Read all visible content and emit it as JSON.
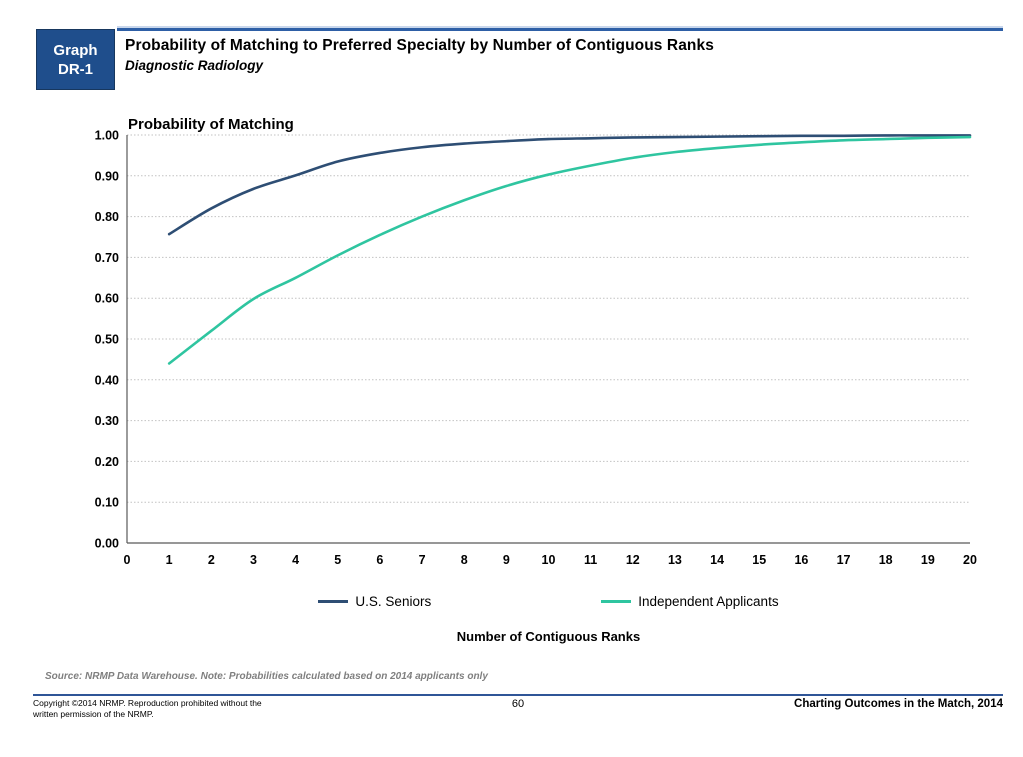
{
  "page": {
    "badge_line1": "Graph",
    "badge_line2": "DR-1",
    "title": "Probability of Matching to Preferred Specialty by Number of Contiguous Ranks",
    "subtitle": "Diagnostic Radiology"
  },
  "colors": {
    "badge_bg": "#1F4E8C",
    "header_rule": "#2E5FA6",
    "footer_rule": "#2F5597",
    "gridline": "#C2C2C2",
    "axis": "#595959",
    "us_seniors_line": "#2E4E74",
    "independent_line": "#2FC5A0",
    "source_note_text": "#7F7F7F"
  },
  "chart_data": {
    "type": "line",
    "title": "Probability of Matching",
    "xlabel": "Number of Contiguous Ranks",
    "ylabel": "",
    "xlim": [
      0,
      20
    ],
    "ylim": [
      0.0,
      1.0
    ],
    "grid": true,
    "legend_position": "bottom",
    "xticks": [
      0,
      1,
      2,
      3,
      4,
      5,
      6,
      7,
      8,
      9,
      10,
      11,
      12,
      13,
      14,
      15,
      16,
      17,
      18,
      19,
      20
    ],
    "yticks": [
      "0.00",
      "0.10",
      "0.20",
      "0.30",
      "0.40",
      "0.50",
      "0.60",
      "0.70",
      "0.80",
      "0.90",
      "1.00"
    ],
    "x": [
      1,
      2,
      3,
      4,
      5,
      6,
      7,
      8,
      9,
      10,
      11,
      12,
      13,
      14,
      15,
      16,
      17,
      18,
      19,
      20
    ],
    "series": [
      {
        "name": "U.S. Seniors",
        "color": "#2E4E74",
        "values": [
          0.757,
          0.82,
          0.868,
          0.901,
          0.935,
          0.956,
          0.97,
          0.979,
          0.985,
          0.99,
          0.992,
          0.994,
          0.995,
          0.996,
          0.997,
          0.998,
          0.998,
          0.999,
          0.999,
          0.999
        ]
      },
      {
        "name": "Independent Applicants",
        "color": "#2FC5A0",
        "values": [
          0.44,
          0.52,
          0.598,
          0.65,
          0.705,
          0.755,
          0.8,
          0.84,
          0.875,
          0.903,
          0.925,
          0.944,
          0.958,
          0.968,
          0.976,
          0.982,
          0.987,
          0.99,
          0.993,
          0.995
        ]
      }
    ]
  },
  "footer": {
    "source_note": "Source: NRMP Data Warehouse. Note: Probabilities calculated based on 2014 applicants only",
    "copyright_line1": "Copyright ©2014 NRMP. Reproduction prohibited without the",
    "copyright_line2": "written permission of the NRMP.",
    "page_number": "60",
    "publication": "Charting Outcomes in the Match, 2014"
  }
}
